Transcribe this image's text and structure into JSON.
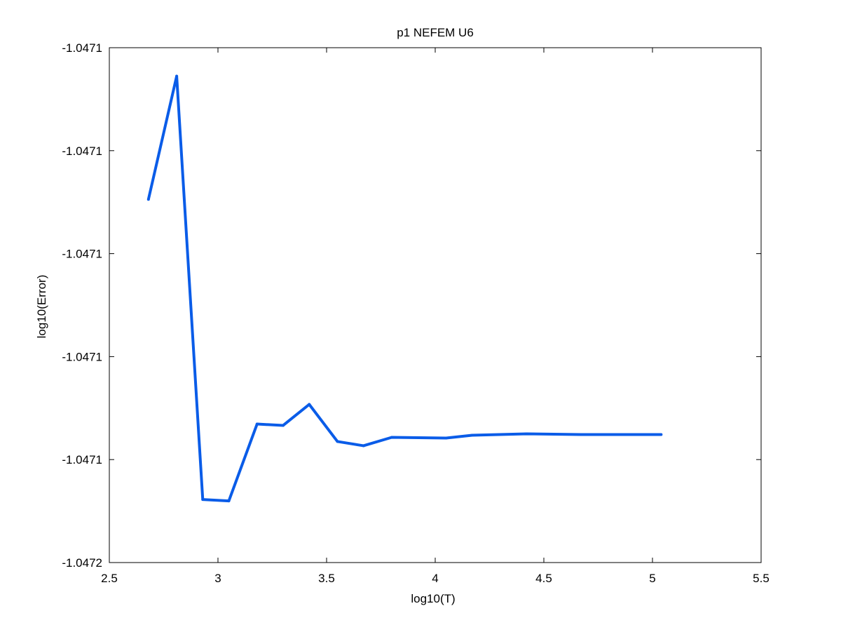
{
  "chart_data": {
    "type": "line",
    "title": "p1 NEFEM U6",
    "xlabel": "log10(T)",
    "ylabel": "log10(Error)",
    "xlim": [
      2.5,
      5.5
    ],
    "ylim": [
      -1.0472,
      -1.0471
    ],
    "x_ticks": [
      2.5,
      3,
      3.5,
      4,
      4.5,
      5,
      5.5
    ],
    "x_tick_labels": [
      "2.5",
      "3",
      "3.5",
      "4",
      "4.5",
      "5",
      "5.5"
    ],
    "y_tick_labels": [
      "-1.0471",
      "-1.0471",
      "-1.0471",
      "-1.0471",
      "-1.0471",
      "-1.0472"
    ],
    "grid": false,
    "legend": "none",
    "series": [
      {
        "color": "#0a5ce8",
        "x": [
          2.68,
          2.81,
          2.93,
          3.05,
          3.18,
          3.3,
          3.42,
          3.55,
          3.67,
          3.8,
          4.05,
          4.17,
          4.42,
          4.67,
          5.04
        ],
        "y": [
          -1.04712946,
          -1.04710553,
          -1.04718776,
          -1.04718803,
          -1.0471731,
          -1.04717336,
          -1.04716928,
          -1.04717649,
          -1.04717731,
          -1.04717568,
          -1.04717582,
          -1.04717527,
          -1.047175,
          -1.04717514,
          -1.04717514
        ]
      }
    ]
  }
}
